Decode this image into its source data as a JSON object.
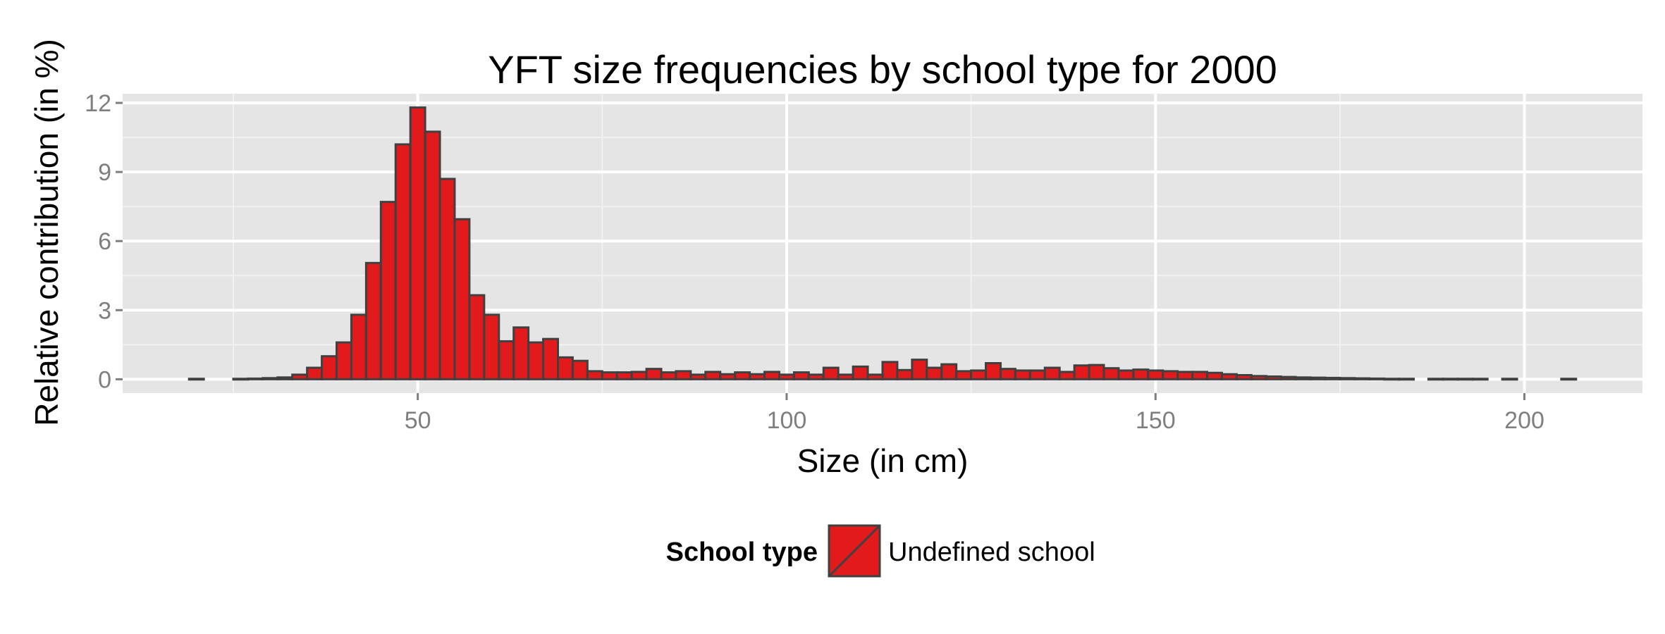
{
  "chart_data": {
    "type": "bar",
    "title": "YFT size frequencies by school type for 2000",
    "xlabel": "Size (in cm)",
    "ylabel": "Relative contribution (in %)",
    "xlim": [
      10,
      216
    ],
    "ylim": [
      -0.6,
      12.4
    ],
    "xticks": [
      50,
      100,
      150,
      200
    ],
    "yticks": [
      0,
      3,
      6,
      9,
      12
    ],
    "grid": true,
    "legend_position": "bottom",
    "legend": {
      "title": "School type",
      "entries": [
        "Undefined school"
      ]
    },
    "bin_width": 2,
    "series": [
      {
        "name": "Undefined school",
        "color": "#e31a1c",
        "outline": "#404040",
        "x": [
          20,
          26,
          28,
          30,
          32,
          34,
          36,
          38,
          40,
          42,
          44,
          46,
          48,
          50,
          52,
          54,
          56,
          58,
          60,
          62,
          64,
          66,
          68,
          70,
          72,
          74,
          76,
          78,
          80,
          82,
          84,
          86,
          88,
          90,
          92,
          94,
          96,
          98,
          100,
          102,
          104,
          106,
          108,
          110,
          112,
          114,
          116,
          118,
          120,
          122,
          124,
          126,
          128,
          130,
          132,
          134,
          136,
          138,
          140,
          142,
          144,
          146,
          148,
          150,
          152,
          154,
          156,
          158,
          160,
          162,
          164,
          166,
          168,
          170,
          172,
          174,
          176,
          178,
          180,
          182,
          184,
          188,
          190,
          192,
          194,
          198,
          206
        ],
        "values": [
          0.02,
          0.02,
          0.03,
          0.05,
          0.08,
          0.2,
          0.5,
          1.0,
          1.6,
          2.8,
          5.05,
          7.7,
          10.2,
          11.8,
          10.75,
          8.7,
          6.95,
          3.65,
          2.8,
          1.65,
          2.25,
          1.6,
          1.75,
          0.95,
          0.8,
          0.35,
          0.3,
          0.3,
          0.32,
          0.45,
          0.3,
          0.35,
          0.2,
          0.32,
          0.22,
          0.3,
          0.22,
          0.32,
          0.2,
          0.3,
          0.2,
          0.5,
          0.2,
          0.55,
          0.2,
          0.75,
          0.4,
          0.85,
          0.5,
          0.65,
          0.35,
          0.38,
          0.7,
          0.45,
          0.38,
          0.38,
          0.5,
          0.32,
          0.6,
          0.62,
          0.48,
          0.38,
          0.42,
          0.38,
          0.35,
          0.32,
          0.32,
          0.28,
          0.22,
          0.18,
          0.14,
          0.12,
          0.1,
          0.08,
          0.07,
          0.06,
          0.05,
          0.04,
          0.03,
          0.02,
          0.02,
          0.02,
          0.02,
          0.02,
          0.02,
          0.02,
          0.02
        ]
      }
    ]
  }
}
